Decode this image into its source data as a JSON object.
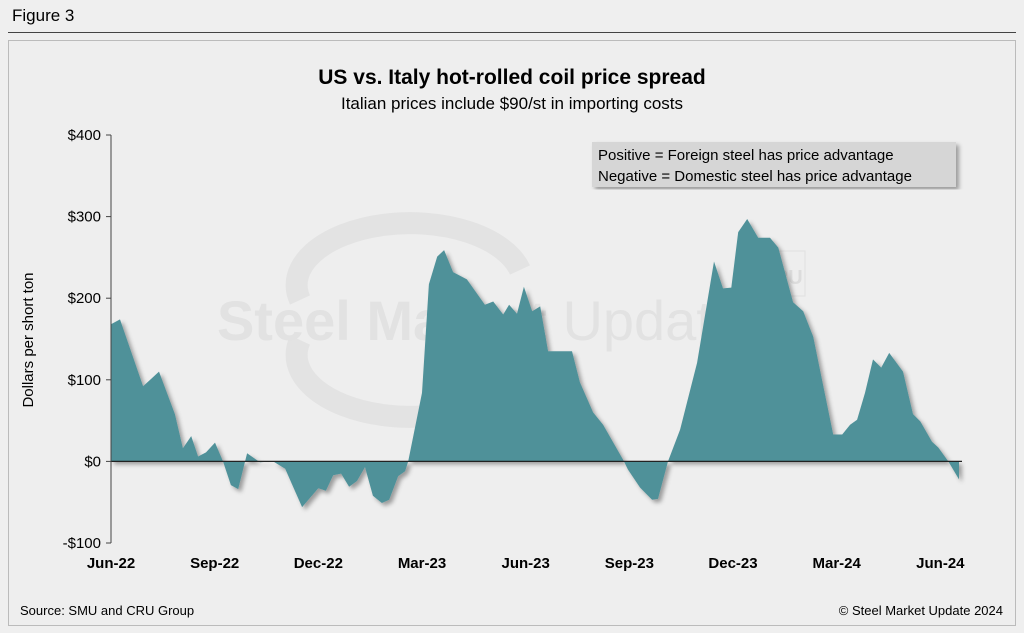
{
  "figure_label": "Figure 3",
  "watermark": {
    "text": "Steel Market Update",
    "logo": "CRU"
  },
  "footer": {
    "source": "Source: SMU and CRU Group",
    "copyright": "© Steel Market Update 2024"
  },
  "colors": {
    "fill": "#4f9199",
    "zero_line": "#222222",
    "legend_bg": "#d6d6d6"
  },
  "chart_data": {
    "type": "area",
    "title": "US vs. Italy hot-rolled coil price spread",
    "subtitle": "Italian prices include $90/st in importing costs",
    "xlabel": "",
    "ylabel": "Dollars per short ton",
    "x_units": "months since Jun-22",
    "xlim": [
      0,
      24.54
    ],
    "ylim": [
      -100,
      400
    ],
    "yticks": [
      {
        "value": 400,
        "label": "$400"
      },
      {
        "value": 300,
        "label": "$300"
      },
      {
        "value": 200,
        "label": "$200"
      },
      {
        "value": 100,
        "label": "$100"
      },
      {
        "value": 0,
        "label": "$0"
      },
      {
        "value": -100,
        "label": "-$100"
      }
    ],
    "xticks": [
      {
        "value": 0,
        "label": "Jun-22"
      },
      {
        "value": 3,
        "label": "Sep-22"
      },
      {
        "value": 6,
        "label": "Dec-22"
      },
      {
        "value": 9,
        "label": "Mar-23"
      },
      {
        "value": 12,
        "label": "Jun-23"
      },
      {
        "value": 15,
        "label": "Sep-23"
      },
      {
        "value": 18,
        "label": "Dec-23"
      },
      {
        "value": 21,
        "label": "Mar-24"
      },
      {
        "value": 24,
        "label": "Jun-24"
      }
    ],
    "legend": [
      "Positive = Foreign steel has price advantage",
      "Negative = Domestic steel has price advantage"
    ],
    "legend_position": "top-right",
    "grid": false,
    "x": [
      0,
      0.26,
      0.93,
      1.39,
      1.85,
      2.08,
      2.32,
      2.52,
      2.75,
      3.01,
      3.24,
      3.47,
      3.68,
      3.94,
      4.31,
      4.69,
      5.04,
      5.27,
      5.53,
      6.0,
      6.22,
      6.43,
      6.66,
      6.89,
      7.12,
      7.35,
      7.58,
      7.84,
      8.05,
      8.31,
      8.51,
      8.6,
      9.0,
      9.2,
      9.44,
      9.64,
      9.9,
      10.3,
      10.82,
      11.06,
      11.35,
      11.52,
      11.75,
      11.95,
      12.19,
      12.42,
      12.65,
      13.34,
      13.57,
      13.95,
      14.24,
      14.82,
      14.96,
      15.31,
      15.66,
      15.83,
      16.12,
      16.47,
      16.96,
      17.45,
      17.71,
      17.95,
      18.15,
      18.41,
      18.73,
      19.07,
      19.31,
      19.74,
      20.03,
      20.32,
      20.9,
      21.16,
      21.39,
      21.59,
      21.82,
      22.05,
      22.29,
      22.52,
      22.92,
      23.21,
      23.42,
      23.76,
      23.94,
      24.23,
      24.54
    ],
    "values": [
      168,
      174,
      92,
      110,
      58,
      16,
      31,
      6,
      11,
      23,
      0,
      -29,
      -34,
      10,
      -1,
      0,
      -9,
      -31,
      -56,
      -33,
      -36,
      -17,
      -15,
      -31,
      -24,
      -7,
      -42,
      -51,
      -47,
      -18,
      -12,
      0,
      84,
      217,
      251,
      259,
      232,
      223,
      192,
      196,
      180,
      192,
      181,
      214,
      184,
      190,
      135,
      135,
      97,
      60,
      45,
      2,
      -10,
      -32,
      -47,
      -46,
      0,
      39,
      121,
      245,
      212,
      213,
      281,
      297,
      274,
      274,
      262,
      195,
      184,
      153,
      33,
      33,
      45,
      51,
      84,
      125,
      115,
      133,
      110,
      58,
      49,
      24,
      17,
      0,
      -22
    ]
  }
}
